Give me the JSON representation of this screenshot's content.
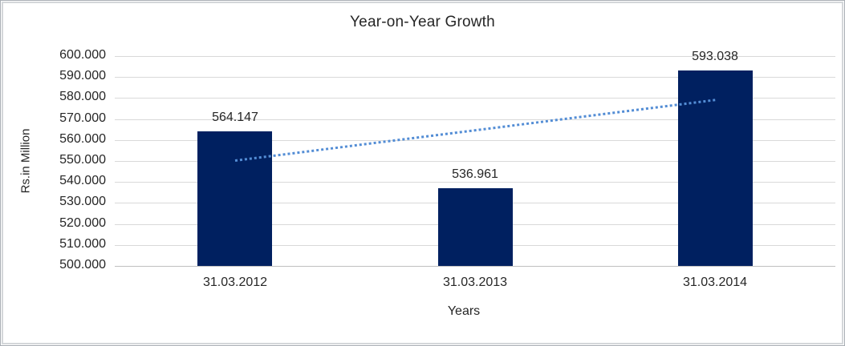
{
  "chart_data": {
    "type": "bar",
    "title": "Year-on-Year Growth",
    "xlabel": "Years",
    "ylabel": "Rs.in Million",
    "categories": [
      "31.03.2012",
      "31.03.2013",
      "31.03.2014"
    ],
    "values": [
      564.147,
      536.961,
      593.038
    ],
    "data_labels": [
      "564.147",
      "536.961",
      "593.038"
    ],
    "y_ticks": [
      600,
      590,
      580,
      570,
      560,
      550,
      540,
      530,
      520,
      510,
      500
    ],
    "y_tick_labels": [
      "600.000",
      "590.000",
      "580.000",
      "570.000",
      "560.000",
      "550.000",
      "540.000",
      "530.000",
      "520.000",
      "510.000",
      "500.000"
    ],
    "ylim": [
      500,
      600
    ],
    "grid": true,
    "legend_position": "none",
    "trendline": {
      "type": "linear",
      "style": "dotted",
      "start_value": 550.3,
      "end_value": 579.2
    }
  },
  "colors": {
    "bar": "#002060",
    "trendline": "#538DD5",
    "gridline": "#D9D9D9",
    "axis_line": "#BFBFBF",
    "text": "#262626",
    "frame_border": "#D4D7DA"
  }
}
